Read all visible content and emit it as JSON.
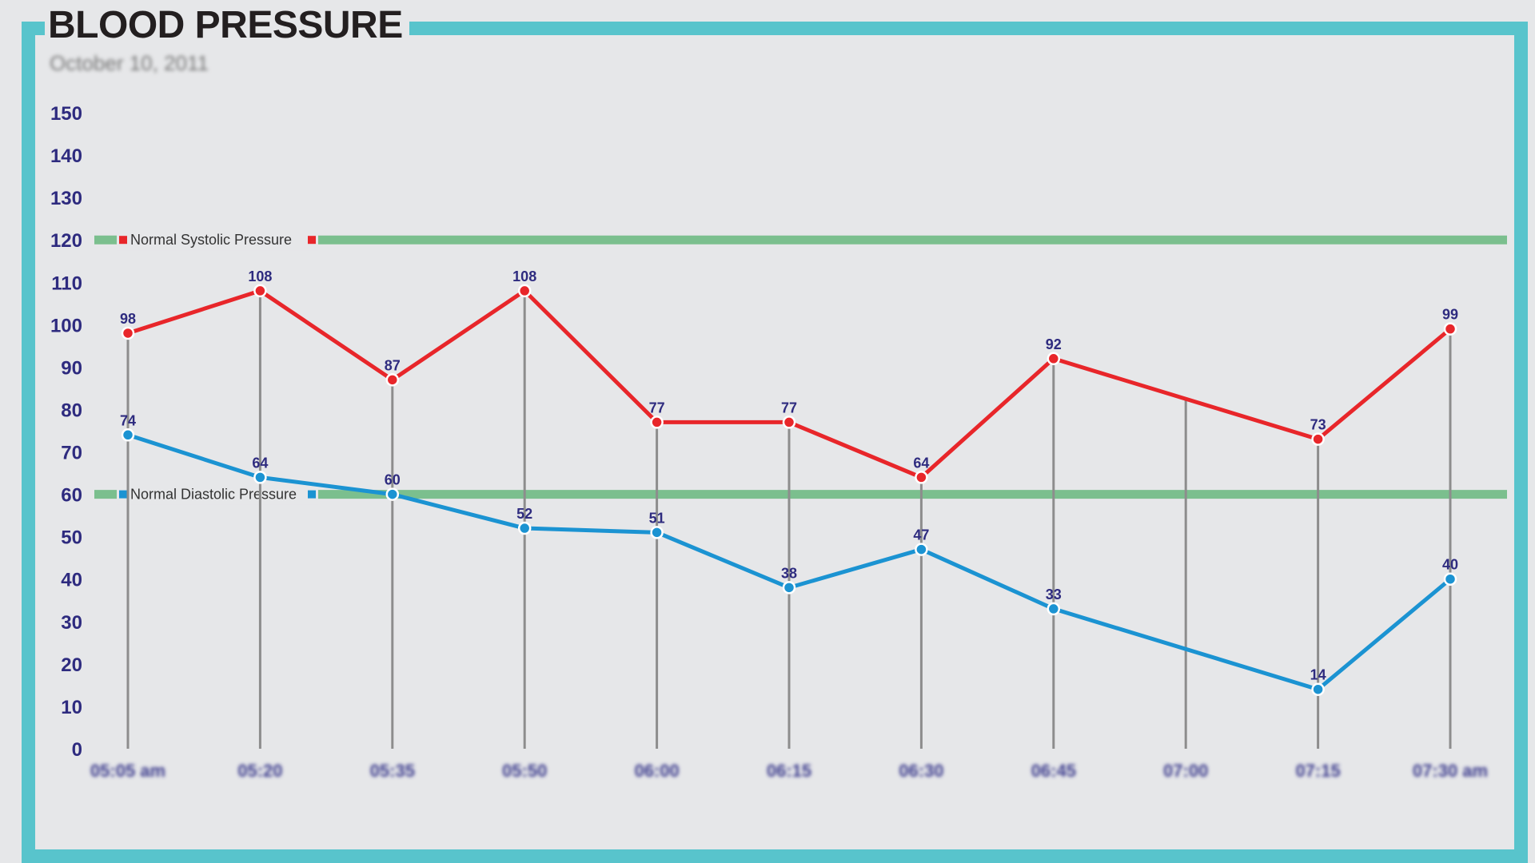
{
  "chart_data": {
    "type": "line",
    "title": "BLOOD PRESSURE",
    "subtitle": "October 10, 2011",
    "xlabel": "",
    "ylabel": "",
    "ylim": [
      0,
      150
    ],
    "yticks": [
      0,
      10,
      20,
      30,
      40,
      50,
      60,
      70,
      80,
      90,
      100,
      110,
      120,
      130,
      140,
      150
    ],
    "categories": [
      "05:05 am",
      "05:20",
      "05:35",
      "05:50",
      "06:00",
      "06:15",
      "06:30",
      "06:45",
      "07:00",
      "07:15",
      "07:30 am"
    ],
    "series": [
      {
        "key": "systolic",
        "color": "#e8262a",
        "values": [
          98,
          108,
          87,
          108,
          77,
          77,
          64,
          92,
          null,
          73,
          99
        ],
        "labels": [
          "98",
          "108",
          "87",
          "108",
          "77",
          "77",
          "64",
          "92",
          "",
          "73",
          "99"
        ]
      },
      {
        "key": "diastolic",
        "color": "#1b93d2",
        "values": [
          74,
          64,
          60,
          52,
          51,
          38,
          47,
          33,
          null,
          14,
          40
        ],
        "labels": [
          "74",
          "64",
          "60",
          "52",
          "51",
          "38",
          "47",
          "33",
          "",
          "14",
          "40"
        ]
      }
    ],
    "reference_lines": [
      {
        "name": "Normal Systolic Pressure",
        "value": 120,
        "color": "#7bbf8e",
        "marker_color": "#e8262a"
      },
      {
        "name": "Normal Diastolic Pressure",
        "value": 60,
        "color": "#7bbf8e",
        "marker_color": "#1b93d2"
      }
    ],
    "grid": false,
    "legend": "none"
  },
  "colors": {
    "frame": "#58c4cc",
    "background": "#e6e7e9",
    "axis": "#8a8a8a",
    "label": "#2e2b7f"
  }
}
